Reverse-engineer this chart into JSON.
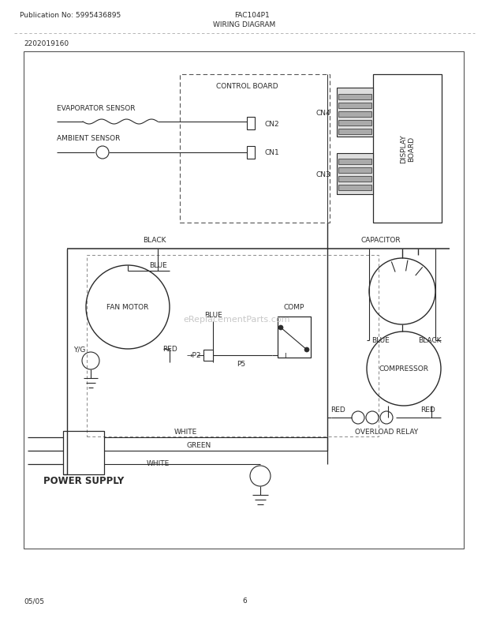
{
  "pub_no": "Publication No: 5995436895",
  "model": "FAC104P1",
  "title": "WIRING DIAGRAM",
  "part_no": "2202019160",
  "date": "05/05",
  "page": "6",
  "watermark": "eReplacementParts.com",
  "bg": "#ffffff",
  "dc": "#2a2a2a",
  "gray": "#888888",
  "lgray": "#bbbbbb",
  "fs_hdr": 6.5,
  "fs_lbl": 6.5,
  "fs_big": 8.5
}
